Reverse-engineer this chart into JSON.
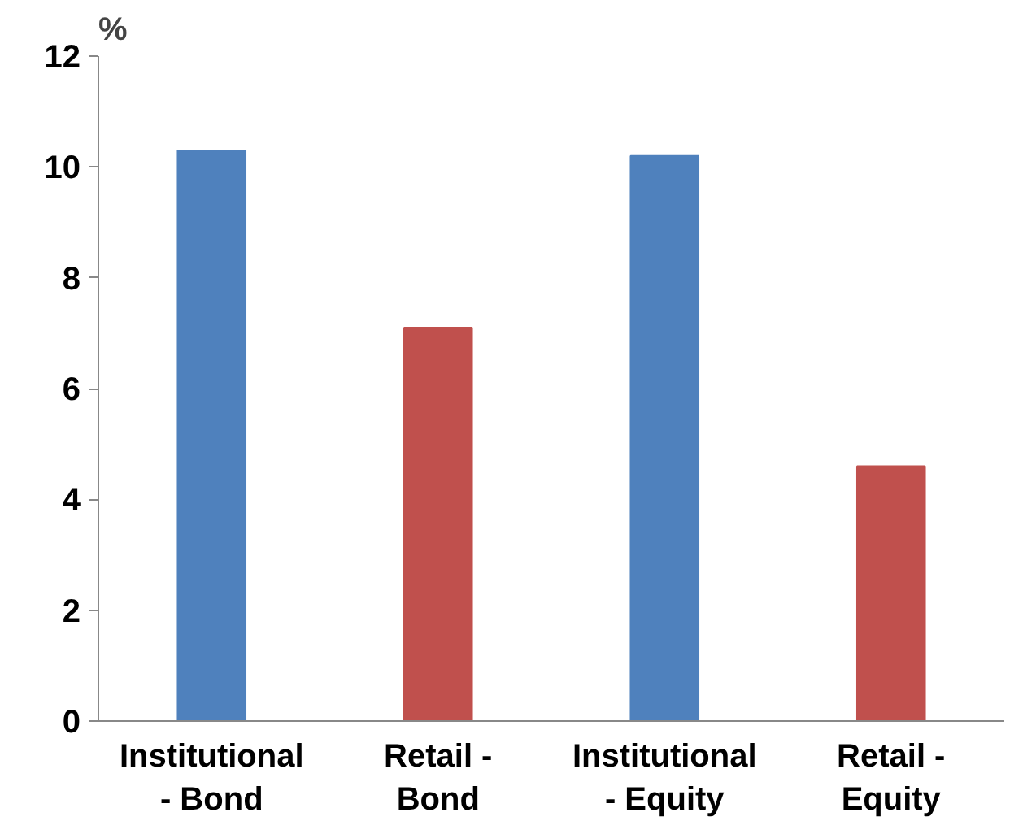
{
  "chart_data": {
    "type": "bar",
    "ylabel": "%",
    "categories": [
      "Institutional\n- Bond",
      "Retail -\nBond",
      "Institutional\n- Equity",
      "Retail -\nEquity"
    ],
    "values": [
      10.3,
      7.1,
      10.2,
      4.6
    ],
    "colors": [
      "#4f81bd",
      "#c0504d",
      "#4f81bd",
      "#c0504d"
    ],
    "ylim": [
      0,
      12
    ],
    "yticks": [
      0,
      2,
      4,
      6,
      8,
      10,
      12
    ],
    "grid": false
  }
}
